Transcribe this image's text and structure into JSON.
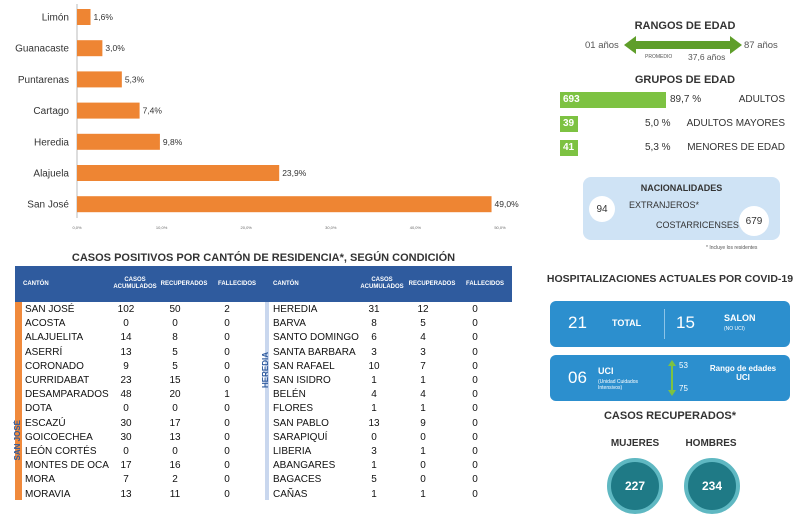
{
  "chart_data": {
    "type": "bar",
    "orientation": "horizontal",
    "categories": [
      "Limón",
      "Guanacaste",
      "Puntarenas",
      "Cartago",
      "Heredia",
      "Alajuela",
      "San José"
    ],
    "values": [
      1.6,
      3.0,
      5.3,
      7.4,
      9.8,
      23.9,
      49.0
    ],
    "value_labels": [
      "1,6%",
      "3,0%",
      "5,3%",
      "7,4%",
      "9,8%",
      "23,9%",
      "49,0%"
    ],
    "xlim": [
      0,
      50
    ],
    "xticks": [
      "0,0%",
      "10,0%",
      "20,0%",
      "30,0%",
      "40,0%",
      "50,0%"
    ],
    "bar_color": "#ee8533",
    "title": ""
  },
  "age_range": {
    "title": "RANGOS DE EDAD",
    "min_label": "01 años",
    "max_label": "87 años",
    "average_caption": "PROMEDIO",
    "average_value": "37,6 años",
    "arrow_color": "#5f9e2a"
  },
  "age_groups": {
    "title": "GRUPOS DE EDAD",
    "color": "#7dc242",
    "items": [
      {
        "count": "693",
        "percent": "89,7 %",
        "name": "ADULTOS",
        "share": 0.897
      },
      {
        "count": "39",
        "percent": "5,0  %",
        "name": "ADULTOS MAYORES",
        "share": 0.05
      },
      {
        "count": "41",
        "percent": "5,3 %",
        "name": "MENORES DE EDAD",
        "share": 0.053
      }
    ]
  },
  "nationalities": {
    "title": "NACIONALIDADES",
    "foreign_count": "94",
    "foreign_label": "EXTRANJEROS*",
    "local_label": "COSTARRICENSES",
    "local_count": "679",
    "footnote": "* Incluye los residentes"
  },
  "cases_table": {
    "title": "CASOS POSITIVOS POR CANTÓN DE RESIDENCIA*, SEGÚN CONDICIÓN",
    "headers": [
      "CANTÓN",
      "CASOS ACUMULADOS",
      "RECUPERADOS",
      "FALLECIDOS"
    ],
    "left_group": "SAN JOSÉ",
    "right_group": "HEREDIA",
    "left_rows": [
      [
        "SAN JOSÉ",
        "102",
        "50",
        "2"
      ],
      [
        "ACOSTA",
        "0",
        "0",
        "0"
      ],
      [
        "ALAJUELITA",
        "14",
        "8",
        "0"
      ],
      [
        "ASERRÍ",
        "13",
        "5",
        "0"
      ],
      [
        "CORONADO",
        "9",
        "5",
        "0"
      ],
      [
        "CURRIDABAT",
        "23",
        "15",
        "0"
      ],
      [
        "DESAMPARADOS",
        "48",
        "20",
        "1"
      ],
      [
        "DOTA",
        "0",
        "0",
        "0"
      ],
      [
        "ESCAZÚ",
        "30",
        "17",
        "0"
      ],
      [
        "GOICOECHEA",
        "30",
        "13",
        "0"
      ],
      [
        "LEÓN CORTÉS",
        "0",
        "0",
        "0"
      ],
      [
        "MONTES DE OCA",
        "17",
        "16",
        "0"
      ],
      [
        "MORA",
        "7",
        "2",
        "0"
      ],
      [
        "MORAVIA",
        "13",
        "11",
        "0"
      ]
    ],
    "right_rows": [
      [
        "HEREDIA",
        "31",
        "12",
        "0"
      ],
      [
        "BARVA",
        "8",
        "5",
        "0"
      ],
      [
        "SANTO DOMINGO",
        "6",
        "4",
        "0"
      ],
      [
        "SANTA BARBARA",
        "3",
        "3",
        "0"
      ],
      [
        "SAN RAFAEL",
        "10",
        "7",
        "0"
      ],
      [
        "SAN ISIDRO",
        "1",
        "1",
        "0"
      ],
      [
        "BELÉN",
        "4",
        "4",
        "0"
      ],
      [
        "FLORES",
        "1",
        "1",
        "0"
      ],
      [
        "SAN PABLO",
        "13",
        "9",
        "0"
      ],
      [
        "SARAPIQUÍ",
        "0",
        "0",
        "0"
      ],
      [
        "LIBERIA",
        "3",
        "1",
        "0"
      ],
      [
        "ABANGARES",
        "1",
        "0",
        "0"
      ],
      [
        "BAGACES",
        "5",
        "0",
        "0"
      ],
      [
        "CAÑAS",
        "1",
        "1",
        "0"
      ]
    ]
  },
  "hospital": {
    "title": "HOSPITALIZACIONES ACTUALES POR COVID-19",
    "total": "21",
    "total_label": "TOTAL",
    "salon": "15",
    "salon_label": "SALON",
    "salon_sub": "(NO UCI)",
    "uci": "06",
    "uci_label": "UCI",
    "uci_sub": "(Unidad Cuidados Intensivos)",
    "range_min": "53",
    "range_max": "75",
    "range_label": "Rango de edades UCI"
  },
  "recovered": {
    "title": "CASOS RECUPERADOS*",
    "women_label": "MUJERES",
    "men_label": "HOMBRES",
    "women": "227",
    "men": "234"
  }
}
